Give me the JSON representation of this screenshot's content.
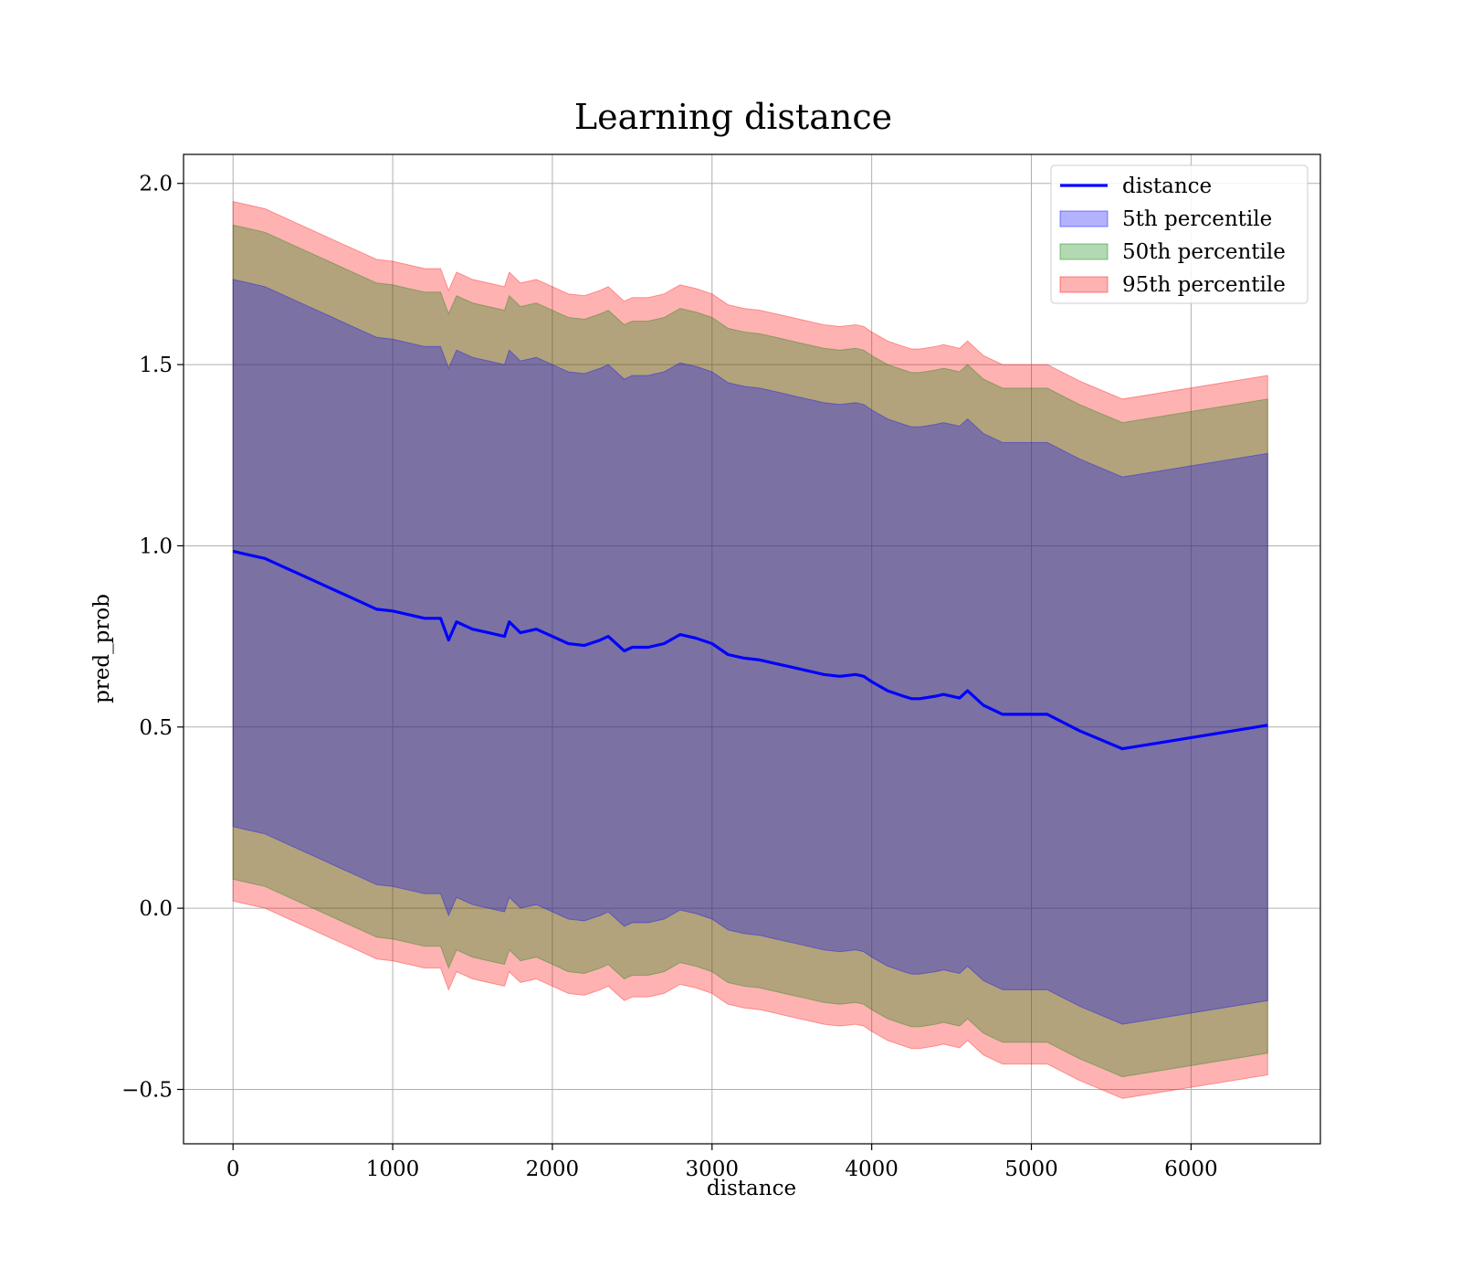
{
  "chart_data": {
    "type": "line",
    "title": "Learning distance",
    "xlabel": "distance",
    "ylabel": "pred_prob",
    "xlim": [
      -310,
      6810
    ],
    "ylim": [
      -0.65,
      2.08
    ],
    "xticks": [
      0,
      1000,
      2000,
      3000,
      4000,
      5000,
      6000
    ],
    "yticks": [
      -0.5,
      0.0,
      0.5,
      1.0,
      1.5,
      2.0
    ],
    "xtick_labels": [
      "0",
      "1000",
      "2000",
      "3000",
      "4000",
      "5000",
      "6000"
    ],
    "ytick_labels": [
      "−0.5",
      "0.0",
      "0.5",
      "1.0",
      "1.5",
      "2.0"
    ],
    "grid": true,
    "legend_position": "top-right",
    "series": [
      {
        "name": "distance",
        "kind": "line",
        "color": "#0000ff",
        "x": [
          0,
          100,
          200,
          300,
          400,
          500,
          600,
          700,
          800,
          900,
          1000,
          1100,
          1200,
          1300,
          1350,
          1400,
          1500,
          1600,
          1700,
          1730,
          1800,
          1900,
          2000,
          2100,
          2200,
          2300,
          2350,
          2400,
          2450,
          2500,
          2600,
          2700,
          2800,
          2900,
          3000,
          3100,
          3200,
          3300,
          3400,
          3500,
          3600,
          3700,
          3800,
          3900,
          3950,
          4000,
          4100,
          4200,
          4250,
          4300,
          4400,
          4450,
          4500,
          4550,
          4600,
          4700,
          4820,
          5000,
          5100,
          5300,
          5570,
          6480
        ],
        "y": [
          0.985,
          0.975,
          0.965,
          0.945,
          0.925,
          0.905,
          0.885,
          0.865,
          0.845,
          0.825,
          0.82,
          0.81,
          0.8,
          0.8,
          0.74,
          0.79,
          0.77,
          0.76,
          0.75,
          0.79,
          0.76,
          0.77,
          0.75,
          0.73,
          0.725,
          0.74,
          0.75,
          0.73,
          0.71,
          0.72,
          0.72,
          0.73,
          0.755,
          0.745,
          0.73,
          0.7,
          0.69,
          0.685,
          0.675,
          0.665,
          0.655,
          0.645,
          0.64,
          0.645,
          0.64,
          0.625,
          0.6,
          0.585,
          0.578,
          0.578,
          0.585,
          0.59,
          0.585,
          0.58,
          0.6,
          0.56,
          0.535,
          0.535,
          0.535,
          0.49,
          0.44,
          0.505
        ]
      },
      {
        "name": "5th percentile",
        "kind": "band",
        "color": "#0000ff",
        "upper_offset": 0.75,
        "lower_offset": -0.76
      },
      {
        "name": "50th percentile",
        "kind": "band",
        "color": "#008000",
        "upper_offset": 0.9,
        "lower_offset": -0.905
      },
      {
        "name": "95th percentile",
        "kind": "band",
        "color": "#ff0000",
        "upper_offset": 0.965,
        "lower_offset": -0.965
      }
    ]
  }
}
